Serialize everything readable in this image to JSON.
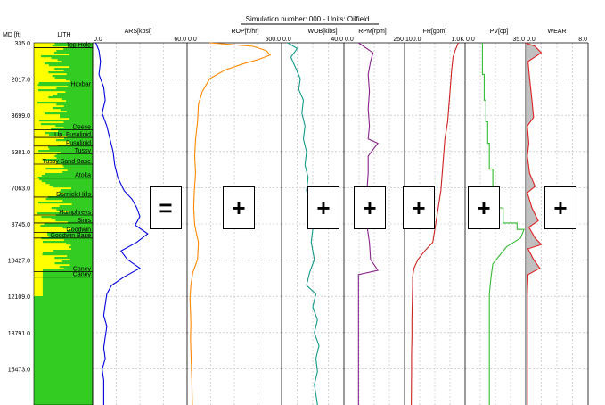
{
  "header": {
    "title": "Simulation number: 000 - Units: Oilfield"
  },
  "chart_data": {
    "type": "line",
    "title": "Simulation number: 000 - Units: Oilfield",
    "depth_axis": {
      "label": "MD [ft]",
      "ticks": [
        335.0,
        2017.0,
        3699.0,
        5381.0,
        7063.0,
        8745.0,
        10427.0,
        12109.0,
        13791.0,
        15473.0
      ],
      "range": [
        335.0,
        17155.0
      ]
    },
    "lithology": {
      "label": "LITH",
      "formations": [
        {
          "name": "Top Hole",
          "md": 560
        },
        {
          "name": "Hoxbar",
          "md": 2380
        },
        {
          "name": "Deese",
          "md": 4380
        },
        {
          "name": "Up. Fusulinid",
          "md": 4730
        },
        {
          "name": "Fusulinid",
          "md": 5130
        },
        {
          "name": "Tussy",
          "md": 5480
        },
        {
          "name": "Tussy Sand Base",
          "md": 5970
        },
        {
          "name": "Atoka",
          "md": 6620
        },
        {
          "name": "Dornick Hills",
          "md": 7500
        },
        {
          "name": "Humphreys",
          "md": 8330
        },
        {
          "name": "Sims",
          "md": 8700
        },
        {
          "name": "Goodwin",
          "md": 9140
        },
        {
          "name": "Goodwin Base",
          "md": 9400
        },
        {
          "name": "Caney",
          "md": 10960
        },
        {
          "name": "Caney",
          "md": 11220
        }
      ],
      "colors": {
        "sand": "#ffff00",
        "shale": "#33cc22"
      }
    },
    "tracks": [
      {
        "name": "ARS",
        "label": "ARS[kpsi]",
        "min": 0.0,
        "max": 60.0,
        "min_label": "0.0",
        "max_label": "60.0",
        "color": "#0000dd",
        "series": [
          [
            335,
            2
          ],
          [
            700,
            4
          ],
          [
            1200,
            5
          ],
          [
            1800,
            4
          ],
          [
            2400,
            7
          ],
          [
            3000,
            8
          ],
          [
            3600,
            6
          ],
          [
            4200,
            9
          ],
          [
            4800,
            11
          ],
          [
            5400,
            13
          ],
          [
            6000,
            14
          ],
          [
            6600,
            16
          ],
          [
            7200,
            20
          ],
          [
            7600,
            25
          ],
          [
            8000,
            28
          ],
          [
            8400,
            30
          ],
          [
            8800,
            27
          ],
          [
            9200,
            35
          ],
          [
            9600,
            28
          ],
          [
            10000,
            18
          ],
          [
            10400,
            22
          ],
          [
            10800,
            30
          ],
          [
            11200,
            20
          ],
          [
            11600,
            12
          ],
          [
            12000,
            9
          ],
          [
            12500,
            8
          ],
          [
            13000,
            7
          ],
          [
            13500,
            9
          ],
          [
            14000,
            8
          ],
          [
            14500,
            7
          ],
          [
            15000,
            8
          ],
          [
            15500,
            6
          ],
          [
            16000,
            7
          ],
          [
            17155,
            7
          ]
        ]
      },
      {
        "name": "ROP",
        "label": "ROP[ft/hr]",
        "min": 0.0,
        "max": 500.0,
        "min_label": "0.0",
        "max_label": "500.0",
        "color": "#ff8800",
        "series": [
          [
            335,
            120
          ],
          [
            500,
            350
          ],
          [
            700,
            420
          ],
          [
            900,
            440
          ],
          [
            1100,
            380
          ],
          [
            1300,
            300
          ],
          [
            1600,
            200
          ],
          [
            2000,
            120
          ],
          [
            2600,
            80
          ],
          [
            3200,
            60
          ],
          [
            4000,
            55
          ],
          [
            4800,
            45
          ],
          [
            5600,
            40
          ],
          [
            6400,
            45
          ],
          [
            7200,
            38
          ],
          [
            8000,
            35
          ],
          [
            8800,
            40
          ],
          [
            9600,
            60
          ],
          [
            10400,
            55
          ],
          [
            11000,
            30
          ],
          [
            11600,
            20
          ],
          [
            12200,
            15
          ],
          [
            12800,
            18
          ],
          [
            13400,
            20
          ],
          [
            14000,
            18
          ],
          [
            14600,
            20
          ],
          [
            15200,
            22
          ],
          [
            16000,
            25
          ],
          [
            17155,
            28
          ]
        ]
      },
      {
        "name": "WOB",
        "label": "WOB[klbs]",
        "min": 0.0,
        "max": 40.0,
        "min_label": "0.0",
        "max_label": "40.0",
        "color": "#119988",
        "series": [
          [
            335,
            4
          ],
          [
            600,
            10
          ],
          [
            1000,
            6
          ],
          [
            1500,
            9
          ],
          [
            2000,
            12
          ],
          [
            2500,
            11
          ],
          [
            3000,
            14
          ],
          [
            3600,
            13
          ],
          [
            4200,
            15
          ],
          [
            4800,
            14
          ],
          [
            5400,
            16
          ],
          [
            6000,
            15
          ],
          [
            6600,
            17
          ],
          [
            7200,
            16
          ],
          [
            7800,
            19
          ],
          [
            8400,
            18
          ],
          [
            9000,
            20
          ],
          [
            9600,
            19
          ],
          [
            10400,
            21
          ],
          [
            11000,
            18
          ],
          [
            11600,
            16
          ],
          [
            12000,
            22
          ],
          [
            12600,
            20
          ],
          [
            13200,
            23
          ],
          [
            13800,
            21
          ],
          [
            14400,
            24
          ],
          [
            15000,
            22
          ],
          [
            15600,
            23
          ],
          [
            16200,
            21
          ],
          [
            17155,
            23
          ]
        ]
      },
      {
        "name": "RPM",
        "label": "RPM[rpm]",
        "min": 0.0,
        "max": 250.0,
        "min_label": "0.0",
        "max_label": "250",
        "color": "#882288",
        "series": [
          [
            335,
            60
          ],
          [
            800,
            120
          ],
          [
            1200,
            110
          ],
          [
            1800,
            100
          ],
          [
            2600,
            105
          ],
          [
            3400,
            100
          ],
          [
            4200,
            105
          ],
          [
            4800,
            100
          ],
          [
            5000,
            140
          ],
          [
            5300,
            120
          ],
          [
            5600,
            100
          ],
          [
            6400,
            100
          ],
          [
            7200,
            95
          ],
          [
            8000,
            100
          ],
          [
            8800,
            95
          ],
          [
            9600,
            105
          ],
          [
            10400,
            110
          ],
          [
            10900,
            140
          ],
          [
            11100,
            60
          ],
          [
            11600,
            60
          ],
          [
            12400,
            60
          ],
          [
            13200,
            60
          ],
          [
            14000,
            60
          ],
          [
            14800,
            60
          ],
          [
            15600,
            60
          ],
          [
            17155,
            60
          ]
        ]
      },
      {
        "name": "FR",
        "label": "FR[gpm]",
        "min": 100.0,
        "max": 1000.0,
        "min_label": "100.0",
        "max_label": "1.0K",
        "color": "#cc2222",
        "series": [
          [
            335,
            900
          ],
          [
            700,
            850
          ],
          [
            1000,
            820
          ],
          [
            1600,
            800
          ],
          [
            2400,
            780
          ],
          [
            3200,
            760
          ],
          [
            4000,
            740
          ],
          [
            4800,
            700
          ],
          [
            5600,
            680
          ],
          [
            6400,
            660
          ],
          [
            7200,
            640
          ],
          [
            8000,
            600
          ],
          [
            8800,
            560
          ],
          [
            9600,
            520
          ],
          [
            10000,
            400
          ],
          [
            10400,
            300
          ],
          [
            10800,
            240
          ],
          [
            11200,
            220
          ],
          [
            11600,
            220
          ],
          [
            12400,
            215
          ],
          [
            13200,
            210
          ],
          [
            14000,
            210
          ],
          [
            14800,
            205
          ],
          [
            15600,
            205
          ],
          [
            17155,
            200
          ]
        ]
      },
      {
        "name": "PV",
        "label": "PV[cp]",
        "min": 0.0,
        "max": 35.0,
        "min_label": "0.0",
        "max_label": "35.0",
        "color": "#33bb33",
        "series": [
          [
            335,
            10
          ],
          [
            1800,
            10
          ],
          [
            1800,
            11
          ],
          [
            3000,
            11
          ],
          [
            3000,
            12
          ],
          [
            4000,
            12
          ],
          [
            4000,
            13
          ],
          [
            5000,
            13
          ],
          [
            5000,
            14
          ],
          [
            6200,
            14
          ],
          [
            6200,
            16
          ],
          [
            7200,
            16
          ],
          [
            7200,
            18
          ],
          [
            8000,
            18
          ],
          [
            8000,
            22
          ],
          [
            8700,
            22
          ],
          [
            8700,
            30
          ],
          [
            9000,
            30
          ],
          [
            9000,
            34
          ],
          [
            9400,
            32
          ],
          [
            9800,
            24
          ],
          [
            10200,
            20
          ],
          [
            10600,
            16
          ],
          [
            11200,
            15
          ],
          [
            12000,
            14
          ],
          [
            13000,
            14
          ],
          [
            14500,
            14
          ],
          [
            17155,
            14
          ]
        ]
      },
      {
        "name": "WEAR",
        "label": "WEAR",
        "min": 0.0,
        "max": 8.0,
        "min_label": "0.0",
        "max_label": "8.0",
        "color": "#dd2222",
        "series": [
          [
            335,
            0
          ],
          [
            500,
            1.2
          ],
          [
            800,
            2.0
          ],
          [
            1200,
            0.3
          ],
          [
            2000,
            0.5
          ],
          [
            3000,
            0.8
          ],
          [
            3800,
            1.0
          ],
          [
            4200,
            0.2
          ],
          [
            5000,
            0.4
          ],
          [
            5600,
            0.2
          ],
          [
            6400,
            0.5
          ],
          [
            7000,
            1.2
          ],
          [
            7300,
            0.2
          ],
          [
            8000,
            0.8
          ],
          [
            8600,
            1.6
          ],
          [
            8900,
            0.4
          ],
          [
            9400,
            1.2
          ],
          [
            9700,
            2.0
          ],
          [
            9900,
            0.3
          ],
          [
            10400,
            1.0
          ],
          [
            10800,
            1.8
          ],
          [
            11100,
            0.3
          ],
          [
            12000,
            0.2
          ],
          [
            13000,
            0.2
          ],
          [
            14000,
            0.2
          ],
          [
            15000,
            0.2
          ],
          [
            17155,
            0.2
          ]
        ]
      }
    ],
    "operators": [
      "=",
      "+",
      "+",
      "+",
      "+",
      "+",
      "+"
    ],
    "grid": true
  }
}
